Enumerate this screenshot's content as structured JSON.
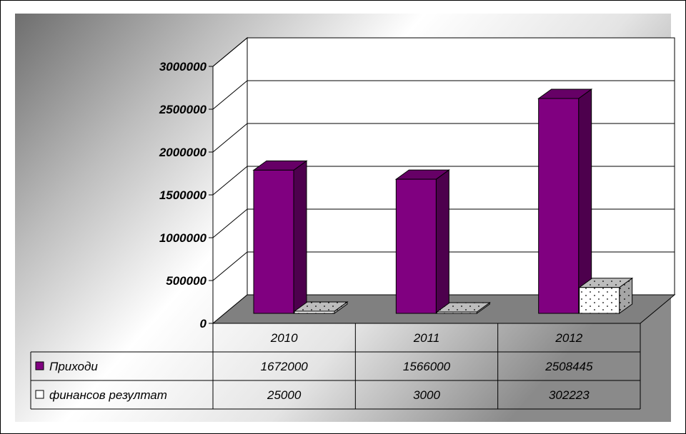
{
  "chart_data": {
    "type": "bar",
    "categories": [
      "2010",
      "2011",
      "2012"
    ],
    "series": [
      {
        "name": "Приходи",
        "values": [
          1672000,
          1566000,
          2508445
        ]
      },
      {
        "name": "финансов резултат",
        "values": [
          25000,
          3000,
          302223
        ]
      }
    ],
    "value_labels": [
      [
        "1672000",
        "1566000",
        "2508445"
      ],
      [
        "25000",
        "3000",
        "302223"
      ]
    ],
    "y_ticks": [
      "0",
      "500000",
      "1000000",
      "1500000",
      "2000000",
      "2500000",
      "3000000"
    ],
    "ylim": [
      0,
      3000000
    ],
    "y_step": 500000,
    "grid": true,
    "legend": "data-table",
    "three_d": true,
    "colors": {
      "series_1": "#800080",
      "series_1_side": "#4d004d",
      "series_1_top": "#660066",
      "series_2": "#ffffff",
      "series_2_side": "#a6a6a6",
      "series_2_top": "#bdbdbd",
      "floor": "#808080"
    }
  }
}
